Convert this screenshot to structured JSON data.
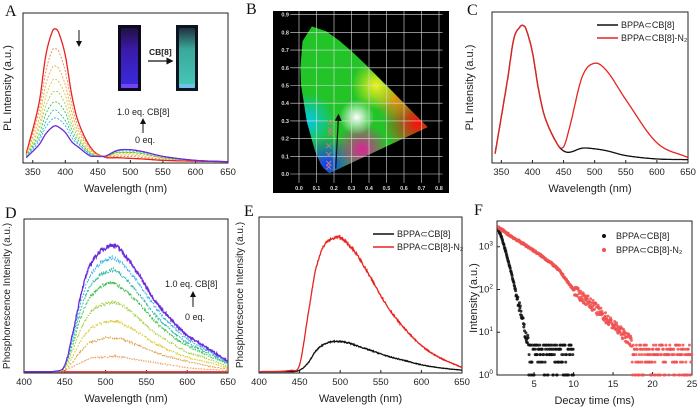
{
  "panels": {
    "A": {
      "letter": "A",
      "annotation_top": "1.0 eq. CB[8]",
      "annotation_bottom": "0 eq.",
      "inset_arrow_label": "CB[8]"
    },
    "B": {
      "letter": "B"
    },
    "C": {
      "letter": "C"
    },
    "D": {
      "letter": "D",
      "annotation_top": "1.0 eq. CB[8]",
      "annotation_bottom": "0 eq."
    },
    "E": {
      "letter": "E"
    },
    "F": {
      "letter": "F"
    }
  },
  "chart_data": [
    {
      "type": "line",
      "xlabel": "Wavelength (nm)",
      "ylabel": "PL Intensity (a.u.)",
      "xlim": [
        335,
        650
      ],
      "ylim": [
        -0.01,
        1.12
      ],
      "xticks": [
        350,
        400,
        450,
        500,
        550,
        600,
        650
      ],
      "grid": false,
      "x": [
        340,
        360,
        370,
        380,
        385,
        390,
        400,
        410,
        420,
        440,
        460,
        480,
        500,
        520,
        550,
        600,
        650
      ],
      "series": [
        {
          "color": "#e8231f",
          "style": "solid",
          "values": [
            0.06,
            0.45,
            0.8,
            0.98,
            1.0,
            0.97,
            0.8,
            0.5,
            0.3,
            0.1,
            0.035,
            0.03,
            0.025,
            0.02,
            0.01,
            0.004,
            0
          ]
        },
        {
          "color": "#f0884a",
          "style": "dashed",
          "values": [
            0.05,
            0.39,
            0.68,
            0.84,
            0.85,
            0.83,
            0.68,
            0.43,
            0.26,
            0.09,
            0.04,
            0.04,
            0.04,
            0.03,
            0.02,
            0.01,
            0
          ]
        },
        {
          "color": "#e8aa3c",
          "style": "dashed",
          "values": [
            0.05,
            0.33,
            0.58,
            0.71,
            0.72,
            0.7,
            0.58,
            0.37,
            0.23,
            0.08,
            0.04,
            0.05,
            0.05,
            0.04,
            0.02,
            0.01,
            0
          ]
        },
        {
          "color": "#d8cc38",
          "style": "dashed",
          "values": [
            0.04,
            0.28,
            0.49,
            0.61,
            0.62,
            0.6,
            0.5,
            0.32,
            0.2,
            0.07,
            0.04,
            0.06,
            0.06,
            0.05,
            0.03,
            0.01,
            0
          ]
        },
        {
          "color": "#a6d042",
          "style": "dashed",
          "values": [
            0.04,
            0.25,
            0.42,
            0.52,
            0.53,
            0.52,
            0.43,
            0.28,
            0.18,
            0.06,
            0.04,
            0.07,
            0.07,
            0.06,
            0.03,
            0.01,
            0
          ]
        },
        {
          "color": "#3cc04a",
          "style": "dashed",
          "values": [
            0.04,
            0.21,
            0.36,
            0.44,
            0.45,
            0.44,
            0.37,
            0.24,
            0.16,
            0.06,
            0.04,
            0.07,
            0.07,
            0.06,
            0.03,
            0.01,
            0
          ]
        },
        {
          "color": "#2ab7a2",
          "style": "dashed",
          "values": [
            0.04,
            0.18,
            0.3,
            0.38,
            0.39,
            0.37,
            0.31,
            0.21,
            0.14,
            0.05,
            0.04,
            0.08,
            0.08,
            0.07,
            0.04,
            0.01,
            0
          ]
        },
        {
          "color": "#30b2e6",
          "style": "dashed",
          "values": [
            0.03,
            0.16,
            0.26,
            0.32,
            0.33,
            0.32,
            0.27,
            0.18,
            0.13,
            0.05,
            0.04,
            0.08,
            0.09,
            0.07,
            0.04,
            0.01,
            0
          ]
        },
        {
          "color": "#6a2bd8",
          "style": "solid",
          "values": [
            0.03,
            0.13,
            0.21,
            0.26,
            0.27,
            0.26,
            0.22,
            0.15,
            0.11,
            0.04,
            0.04,
            0.085,
            0.09,
            0.075,
            0.04,
            0.01,
            0
          ]
        }
      ]
    },
    {
      "type": "scatter",
      "xlim": [
        0.0,
        0.8
      ],
      "ylim": [
        0.0,
        0.9
      ],
      "xticks": [
        "0.0",
        "0.1",
        "0.2",
        "0.3",
        "0.4",
        "0.5",
        "0.6",
        "0.7",
        "0.8"
      ],
      "yticks": [
        "0.0",
        "0.1",
        "0.2",
        "0.3",
        "0.4",
        "0.5",
        "0.6",
        "0.7",
        "0.8",
        "0.9"
      ],
      "grid": true,
      "background": "#000000",
      "points": [
        [
          0.17,
          0.04
        ],
        [
          0.17,
          0.06
        ],
        [
          0.17,
          0.11
        ],
        [
          0.17,
          0.16
        ],
        [
          0.18,
          0.23
        ],
        [
          0.18,
          0.25
        ],
        [
          0.18,
          0.29
        ]
      ],
      "point_color": "#c08080",
      "arrow": {
        "from": [
          0.21,
          0.03
        ],
        "to": [
          0.225,
          0.32
        ]
      }
    },
    {
      "type": "line",
      "xlabel": "Wavelength (nm)",
      "ylabel": "PL Intensity (a.u.)",
      "xlim": [
        335,
        650
      ],
      "ylim": [
        -0.02,
        1.1
      ],
      "xticks": [
        350,
        400,
        450,
        500,
        550,
        600,
        650
      ],
      "grid": false,
      "legend": "top-right",
      "x": [
        340,
        360,
        370,
        380,
        385,
        390,
        400,
        410,
        420,
        440,
        450,
        460,
        480,
        500,
        520,
        550,
        600,
        650
      ],
      "series": [
        {
          "name": "BPPA⊂CB[8]",
          "color": "#111111",
          "values": [
            0.05,
            0.6,
            0.9,
            0.99,
            1.0,
            0.97,
            0.8,
            0.52,
            0.32,
            0.12,
            0.07,
            0.06,
            0.09,
            0.085,
            0.07,
            0.035,
            0.01,
            0.005
          ]
        },
        {
          "name": "BPPA⊂CB[8]-N₂",
          "color": "#e8231f",
          "values": [
            0.05,
            0.6,
            0.9,
            0.99,
            1.0,
            0.97,
            0.8,
            0.52,
            0.32,
            0.12,
            0.1,
            0.25,
            0.62,
            0.72,
            0.66,
            0.45,
            0.13,
            0.02
          ]
        }
      ]
    },
    {
      "type": "line",
      "xlabel": "Wavelength (nm)",
      "ylabel": "Phosphorescence Intensity (a.u.)",
      "xlim": [
        400,
        650
      ],
      "ylim": [
        -0.01,
        1.17
      ],
      "xticks": [
        400,
        450,
        500,
        550,
        600,
        650
      ],
      "grid": false,
      "x": [
        400,
        440,
        450,
        460,
        470,
        480,
        490,
        500,
        510,
        520,
        540,
        560,
        580,
        600,
        620,
        650
      ],
      "series": [
        {
          "color": "#ff3b3b",
          "style": "solid",
          "values": [
            0,
            0,
            0,
            0,
            0,
            0,
            0,
            0,
            0,
            0,
            0,
            0,
            0,
            0,
            0,
            0
          ]
        },
        {
          "color": "#f0a060",
          "style": "dashed",
          "values": [
            0,
            0,
            0.01,
            0.04,
            0.07,
            0.1,
            0.11,
            0.11,
            0.12,
            0.11,
            0.09,
            0.07,
            0.05,
            0.03,
            0.02,
            0.01
          ]
        },
        {
          "color": "#dba040",
          "style": "dashed",
          "values": [
            0,
            0,
            0.01,
            0.08,
            0.16,
            0.22,
            0.24,
            0.26,
            0.26,
            0.25,
            0.2,
            0.15,
            0.11,
            0.08,
            0.05,
            0.02
          ]
        },
        {
          "color": "#d8cc38",
          "style": "dashed",
          "values": [
            0,
            0,
            0.02,
            0.12,
            0.24,
            0.32,
            0.36,
            0.38,
            0.39,
            0.37,
            0.3,
            0.22,
            0.16,
            0.11,
            0.08,
            0.03
          ]
        },
        {
          "color": "#a6d042",
          "style": "dashed",
          "values": [
            0,
            0,
            0.03,
            0.17,
            0.33,
            0.44,
            0.5,
            0.52,
            0.53,
            0.51,
            0.41,
            0.3,
            0.22,
            0.15,
            0.11,
            0.04
          ]
        },
        {
          "color": "#3cc04a",
          "style": "dashed",
          "values": [
            0,
            0,
            0.04,
            0.21,
            0.42,
            0.56,
            0.63,
            0.67,
            0.68,
            0.64,
            0.53,
            0.39,
            0.28,
            0.2,
            0.14,
            0.06
          ]
        },
        {
          "color": "#2ab7a2",
          "style": "dashed",
          "values": [
            0,
            0,
            0.04,
            0.24,
            0.48,
            0.64,
            0.72,
            0.76,
            0.78,
            0.74,
            0.6,
            0.44,
            0.32,
            0.22,
            0.16,
            0.06
          ]
        },
        {
          "color": "#30b2e6",
          "style": "dashed",
          "values": [
            0,
            0,
            0.05,
            0.27,
            0.54,
            0.72,
            0.81,
            0.86,
            0.87,
            0.83,
            0.68,
            0.5,
            0.36,
            0.25,
            0.18,
            0.07
          ]
        },
        {
          "color": "#6a2bd8",
          "style": "solid",
          "values": [
            0,
            0.005,
            0.05,
            0.3,
            0.6,
            0.8,
            0.9,
            0.95,
            0.97,
            0.92,
            0.75,
            0.55,
            0.4,
            0.28,
            0.2,
            0.08
          ]
        }
      ]
    },
    {
      "type": "line",
      "xlabel": "Wavelength (nm)",
      "ylabel": "Phosphorescence Intensity (a.u.)",
      "xlim": [
        400,
        650
      ],
      "ylim": [
        -0.01,
        1.13
      ],
      "xticks": [
        400,
        450,
        500,
        550,
        600,
        650
      ],
      "grid": false,
      "legend": "top-right",
      "x": [
        400,
        440,
        450,
        460,
        470,
        480,
        490,
        500,
        510,
        520,
        540,
        560,
        580,
        600,
        620,
        650
      ],
      "series": [
        {
          "name": "BPPA⊂CB[8]",
          "color": "#111111",
          "values": [
            0,
            0,
            0.01,
            0.06,
            0.15,
            0.2,
            0.22,
            0.22,
            0.21,
            0.19,
            0.15,
            0.11,
            0.08,
            0.05,
            0.03,
            0.01
          ]
        },
        {
          "name": "BPPA⊂CB[8]-N₂",
          "color": "#e8231f",
          "values": [
            0,
            0.01,
            0.05,
            0.4,
            0.75,
            0.92,
            0.97,
            0.98,
            0.93,
            0.86,
            0.66,
            0.46,
            0.31,
            0.19,
            0.11,
            0.03
          ]
        }
      ]
    },
    {
      "type": "scatter",
      "xlabel": "Decay time (ms)",
      "ylabel": "Intensity (a.u.)",
      "xlim": [
        0.3,
        25
      ],
      "ylim": [
        1,
        4000
      ],
      "yscale": "log",
      "xticks": [
        5,
        10,
        15,
        20,
        25
      ],
      "yticks": [
        1,
        10,
        100,
        1000
      ],
      "grid": false,
      "legend": "top-right",
      "series": [
        {
          "name": "BPPA⊂CB[8]",
          "color": "#111111",
          "x": [
            0.5,
            1,
            2,
            3,
            3.5,
            4,
            5,
            6,
            7,
            8,
            9,
            10
          ],
          "y": [
            2500,
            1400,
            300,
            50,
            20,
            8,
            4,
            3,
            3,
            3,
            3,
            3
          ]
        },
        {
          "name": "BPPA⊂CB[8]-N₂",
          "color": "#f05050",
          "x": [
            0.5,
            2,
            5,
            8,
            10,
            12,
            15,
            18,
            20,
            22,
            25
          ],
          "y": [
            2800,
            1800,
            800,
            300,
            100,
            50,
            15,
            5,
            4,
            3,
            3
          ]
        }
      ]
    }
  ]
}
